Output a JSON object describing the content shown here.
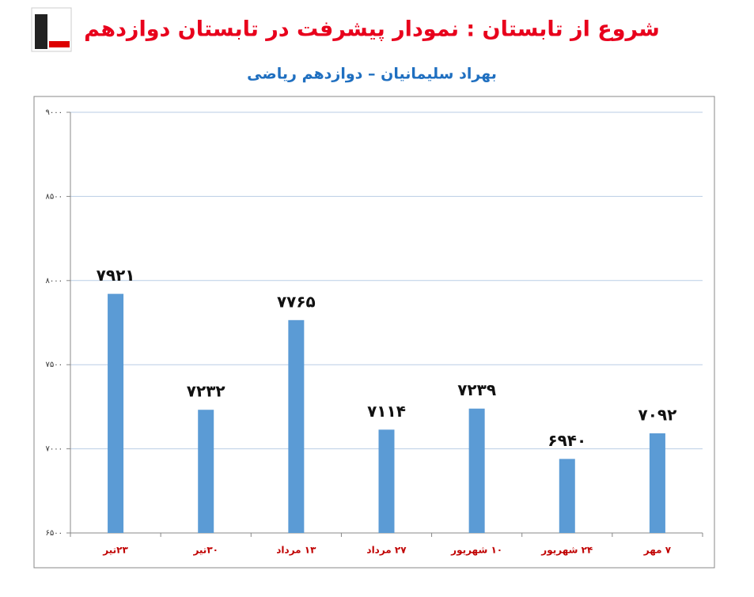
{
  "chart_data": {
    "type": "bar",
    "title": "شروع از تابستان : نمودار پیشرفت در تابستان دوازدهم",
    "subtitle": "بهراد سلیمانیان – دوازدهم ریاضی",
    "categories": [
      "۲۳تیر",
      "۳۰تیر",
      "۱۳ مرداد",
      "۲۷ مرداد",
      "۱۰ شهریور",
      "۲۴ شهریور",
      "۷ مهر"
    ],
    "values": [
      7921,
      7232,
      7765,
      7114,
      7239,
      6940,
      7092
    ],
    "value_labels": [
      "۷۹۲۱",
      "۷۲۳۲",
      "۷۷۶۵",
      "۷۱۱۴",
      "۷۲۳۹",
      "۶۹۴۰",
      "۷۰۹۲"
    ],
    "color": "#5b9bd5",
    "ylim": [
      6500,
      9000
    ],
    "yticks": [
      {
        "value": 6500,
        "label": "۶۵۰۰"
      },
      {
        "value": 7000,
        "label": "۷۰۰۰"
      },
      {
        "value": 7500,
        "label": "۷۵۰۰"
      },
      {
        "value": 8000,
        "label": "۸۰۰۰"
      },
      {
        "value": 8500,
        "label": "۸۵۰۰"
      },
      {
        "value": 9000,
        "label": "۹۰۰۰"
      }
    ],
    "grid": true
  }
}
